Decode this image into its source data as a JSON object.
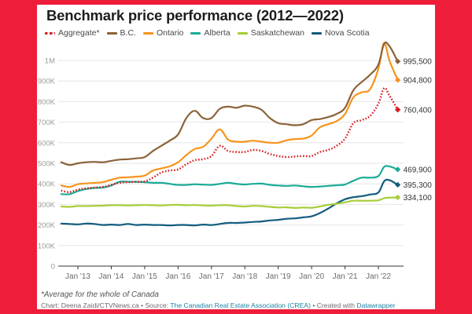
{
  "page": {
    "background_color": "#ee1d3a"
  },
  "footer": {
    "note": "*Average for the whole of Canada",
    "credit_prefix": "Chart: Deena Zaidi/CTVNews.ca • Source: ",
    "source_link": "The Canadian Real Estate Association (CREA)",
    "credit_mid": " • Created with ",
    "tool_link": "Datawrapper"
  },
  "chart_data": {
    "type": "line",
    "title": "Benchmark price performance (2012—2022)",
    "xlabel": "",
    "ylabel": "",
    "x_ticks": [
      {
        "label": "Jan '13",
        "x": 2013
      },
      {
        "label": "Jan '14",
        "x": 2014
      },
      {
        "label": "Jan '15",
        "x": 2015
      },
      {
        "label": "Jan '16",
        "x": 2016
      },
      {
        "label": "Jan '17",
        "x": 2017
      },
      {
        "label": "Jan '18",
        "x": 2018
      },
      {
        "label": "Jan '19",
        "x": 2019
      },
      {
        "label": "Jan '20",
        "x": 2020
      },
      {
        "label": "Jan '21",
        "x": 2021
      },
      {
        "label": "Jan '22",
        "x": 2022
      }
    ],
    "y_ticks": [
      {
        "label": "0",
        "y": 0
      },
      {
        "label": "100K",
        "y": 100000
      },
      {
        "label": "200K",
        "y": 200000
      },
      {
        "label": "300K",
        "y": 300000
      },
      {
        "label": "400K",
        "y": 400000
      },
      {
        "label": "500K",
        "y": 500000
      },
      {
        "label": "600K",
        "y": 600000
      },
      {
        "label": "700K",
        "y": 700000
      },
      {
        "label": "800K",
        "y": 800000
      },
      {
        "label": "900K",
        "y": 900000
      },
      {
        "label": "1M",
        "y": 1000000
      }
    ],
    "xlim": [
      2012.0,
      2022.9
    ],
    "ylim": [
      0,
      1000000
    ],
    "grid": true,
    "legend_position": "top-left",
    "x": [
      2012.5,
      2012.75,
      2013.0,
      2013.25,
      2013.5,
      2013.75,
      2014.0,
      2014.25,
      2014.5,
      2014.75,
      2015.0,
      2015.25,
      2015.5,
      2015.75,
      2016.0,
      2016.25,
      2016.5,
      2016.75,
      2017.0,
      2017.25,
      2017.5,
      2017.75,
      2018.0,
      2018.25,
      2018.5,
      2018.75,
      2019.0,
      2019.25,
      2019.5,
      2019.75,
      2020.0,
      2020.25,
      2020.5,
      2020.75,
      2021.0,
      2021.25,
      2021.5,
      2021.75,
      2022.0,
      2022.17,
      2022.33,
      2022.58
    ],
    "series": [
      {
        "name": "Aggregate*",
        "color": "#d7191c",
        "style": "dotted",
        "end_label": "760,400",
        "values": [
          367000,
          360000,
          372000,
          378000,
          382000,
          385000,
          395000,
          405000,
          408000,
          410000,
          412000,
          430000,
          455000,
          465000,
          470000,
          495000,
          515000,
          520000,
          535000,
          585000,
          560000,
          555000,
          555000,
          565000,
          560000,
          545000,
          535000,
          530000,
          533000,
          535000,
          535000,
          555000,
          565000,
          585000,
          620000,
          695000,
          710000,
          730000,
          790000,
          865000,
          830000,
          760400
        ]
      },
      {
        "name": "B.C.",
        "color": "#8c6239",
        "style": "solid",
        "end_label": "995,500",
        "values": [
          505000,
          492000,
          500000,
          505000,
          507000,
          505000,
          512000,
          518000,
          520000,
          524000,
          530000,
          560000,
          585000,
          610000,
          640000,
          720000,
          755000,
          720000,
          720000,
          765000,
          775000,
          770000,
          780000,
          775000,
          760000,
          720000,
          695000,
          690000,
          685000,
          690000,
          710000,
          715000,
          725000,
          740000,
          770000,
          855000,
          895000,
          930000,
          980000,
          1080000,
          1070000,
          995500
        ]
      },
      {
        "name": "Ontario",
        "color": "#f7941d",
        "style": "solid",
        "end_label": "904,800",
        "values": [
          392000,
          385000,
          398000,
          402000,
          405000,
          408000,
          420000,
          430000,
          432000,
          435000,
          440000,
          465000,
          475000,
          485000,
          505000,
          540000,
          570000,
          580000,
          620000,
          665000,
          615000,
          605000,
          605000,
          610000,
          605000,
          600000,
          600000,
          612000,
          618000,
          620000,
          635000,
          675000,
          690000,
          705000,
          740000,
          820000,
          845000,
          860000,
          960000,
          1085000,
          1000000,
          904800
        ]
      },
      {
        "name": "Alberta",
        "color": "#1aab97",
        "style": "solid",
        "end_label": "469,900",
        "values": [
          350000,
          350000,
          365000,
          375000,
          380000,
          382000,
          392000,
          410000,
          410000,
          410000,
          408000,
          405000,
          405000,
          400000,
          395000,
          395000,
          398000,
          396000,
          395000,
          400000,
          405000,
          400000,
          397000,
          400000,
          401000,
          395000,
          392000,
          390000,
          392000,
          388000,
          385000,
          387000,
          390000,
          393000,
          397000,
          415000,
          430000,
          430000,
          438000,
          482000,
          485000,
          469900
        ]
      },
      {
        "name": "Saskatchewan",
        "color": "#a6ce39",
        "style": "solid",
        "end_label": "334,100",
        "values": [
          290000,
          288000,
          292000,
          292000,
          293000,
          294000,
          296000,
          296000,
          295000,
          296000,
          297000,
          296000,
          295000,
          297000,
          298000,
          296000,
          297000,
          295000,
          294000,
          296000,
          296000,
          292000,
          290000,
          293000,
          292000,
          288000,
          285000,
          286000,
          283000,
          285000,
          284000,
          290000,
          298000,
          303000,
          310000,
          318000,
          318000,
          318000,
          320000,
          330000,
          333000,
          334100
        ]
      },
      {
        "name": "Nova Scotia",
        "color": "#135c7d",
        "style": "solid",
        "end_label": "395,300",
        "values": [
          207000,
          205000,
          203000,
          207000,
          205000,
          200000,
          202000,
          200000,
          205000,
          200000,
          202000,
          200000,
          200000,
          198000,
          200000,
          200000,
          198000,
          202000,
          200000,
          205000,
          210000,
          210000,
          212000,
          215000,
          217000,
          222000,
          225000,
          230000,
          232000,
          237000,
          242000,
          258000,
          280000,
          305000,
          325000,
          335000,
          340000,
          348000,
          358000,
          412000,
          418000,
          395300
        ]
      }
    ]
  }
}
